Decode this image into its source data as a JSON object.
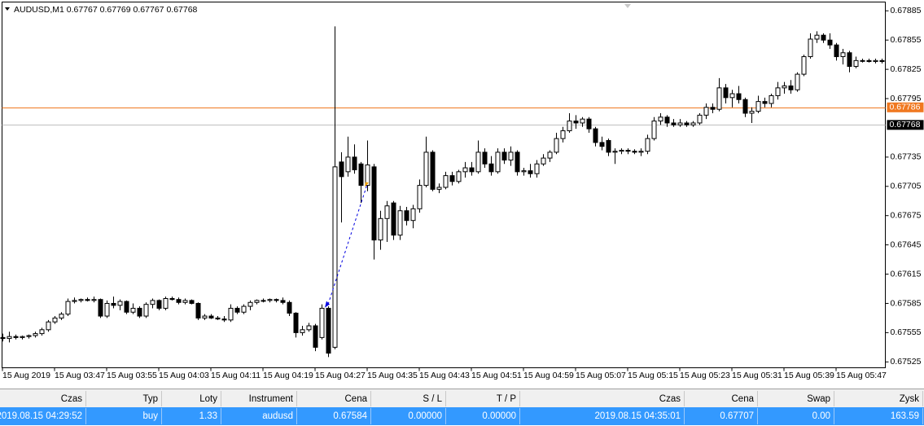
{
  "chart_data": {
    "type": "candlestick",
    "title": "AUDUSD,M1",
    "quote": [
      0.67767,
      0.67769,
      0.67767,
      0.67768
    ],
    "ylim": [
      0.67519,
      0.67894
    ],
    "yticks": [
      0.67885,
      0.67855,
      0.67825,
      0.67795,
      0.67735,
      0.67705,
      0.67675,
      0.67645,
      0.67615,
      0.67585,
      0.67555,
      0.67525
    ],
    "levels": [
      {
        "value": 0.67786,
        "color": "#f07820"
      },
      {
        "value": 0.67768,
        "color": "#c0c0c0"
      }
    ],
    "categories": [
      "15 Aug 2019",
      null,
      null,
      null,
      null,
      null,
      null,
      null,
      "15 Aug 03:47",
      null,
      null,
      null,
      null,
      null,
      null,
      null,
      "15 Aug 03:55",
      null,
      null,
      null,
      null,
      null,
      null,
      null,
      "15 Aug 04:03",
      null,
      null,
      null,
      null,
      null,
      null,
      null,
      "15 Aug 04:11",
      null,
      null,
      null,
      null,
      null,
      null,
      null,
      "15 Aug 04:19",
      null,
      null,
      null,
      null,
      null,
      null,
      null,
      "15 Aug 04:27",
      null,
      null,
      null,
      null,
      null,
      null,
      null,
      "15 Aug 04:35",
      null,
      null,
      null,
      null,
      null,
      null,
      null,
      "15 Aug 04:43",
      null,
      null,
      null,
      null,
      null,
      null,
      null,
      "15 Aug 04:51",
      null,
      null,
      null,
      null,
      null,
      null,
      null,
      "15 Aug 04:59",
      null,
      null,
      null,
      null,
      null,
      null,
      null,
      "15 Aug 05:07",
      null,
      null,
      null,
      null,
      null,
      null,
      null,
      "15 Aug 05:15",
      null,
      null,
      null,
      null,
      null,
      null,
      null,
      "15 Aug 05:23",
      null,
      null,
      null,
      null,
      null,
      null,
      null,
      "15 Aug 05:31",
      null,
      null,
      null,
      null,
      null,
      null,
      null,
      "15 Aug 05:39",
      null,
      null,
      null,
      null,
      null,
      null,
      null,
      "15 Aug 05:47",
      null,
      null,
      null,
      null,
      null,
      null,
      null
    ],
    "ohlc": [
      [
        0.6755,
        0.67554,
        0.67546,
        0.67549
      ],
      [
        0.67549,
        0.67556,
        0.67545,
        0.67551
      ],
      [
        0.67551,
        0.67553,
        0.67548,
        0.6755
      ],
      [
        0.6755,
        0.67552,
        0.67548,
        0.67551
      ],
      [
        0.67551,
        0.67553,
        0.67549,
        0.67552
      ],
      [
        0.67552,
        0.67556,
        0.6755,
        0.67554
      ],
      [
        0.67554,
        0.6756,
        0.67552,
        0.67558
      ],
      [
        0.67558,
        0.67568,
        0.67556,
        0.67566
      ],
      [
        0.67566,
        0.67572,
        0.67564,
        0.6757
      ],
      [
        0.6757,
        0.67576,
        0.67568,
        0.67574
      ],
      [
        0.67574,
        0.6759,
        0.67572,
        0.67587
      ],
      [
        0.67587,
        0.67591,
        0.67585,
        0.67588
      ],
      [
        0.67588,
        0.6759,
        0.67586,
        0.67589
      ],
      [
        0.67589,
        0.67591,
        0.67587,
        0.67588
      ],
      [
        0.67588,
        0.67592,
        0.67586,
        0.67589
      ],
      [
        0.67589,
        0.6759,
        0.6757,
        0.67572
      ],
      [
        0.67572,
        0.67588,
        0.6757,
        0.67585
      ],
      [
        0.67585,
        0.67592,
        0.6758,
        0.67583
      ],
      [
        0.67583,
        0.67589,
        0.67578,
        0.67587
      ],
      [
        0.67587,
        0.67588,
        0.67574,
        0.67576
      ],
      [
        0.67576,
        0.67585,
        0.67574,
        0.6758
      ],
      [
        0.6758,
        0.67582,
        0.6757,
        0.67572
      ],
      [
        0.67572,
        0.67586,
        0.6757,
        0.67584
      ],
      [
        0.67584,
        0.6759,
        0.6758,
        0.67588
      ],
      [
        0.67588,
        0.67589,
        0.67578,
        0.6758
      ],
      [
        0.6758,
        0.67592,
        0.67578,
        0.6759
      ],
      [
        0.6759,
        0.67592,
        0.67588,
        0.67589
      ],
      [
        0.67589,
        0.67591,
        0.67584,
        0.67586
      ],
      [
        0.67586,
        0.6759,
        0.67584,
        0.67588
      ],
      [
        0.67588,
        0.67589,
        0.67584,
        0.67585
      ],
      [
        0.67585,
        0.67586,
        0.67568,
        0.6757
      ],
      [
        0.6757,
        0.67574,
        0.67568,
        0.67572
      ],
      [
        0.67572,
        0.67574,
        0.67569,
        0.6757
      ],
      [
        0.6757,
        0.67572,
        0.67568,
        0.67569
      ],
      [
        0.67569,
        0.67572,
        0.67566,
        0.67568
      ],
      [
        0.67568,
        0.67584,
        0.67566,
        0.6758
      ],
      [
        0.6758,
        0.67582,
        0.67574,
        0.67576
      ],
      [
        0.67576,
        0.67584,
        0.67574,
        0.67582
      ],
      [
        0.67582,
        0.67588,
        0.67578,
        0.67586
      ],
      [
        0.67586,
        0.67589,
        0.67584,
        0.67588
      ],
      [
        0.67588,
        0.6759,
        0.67586,
        0.67588
      ],
      [
        0.67588,
        0.6759,
        0.67586,
        0.67589
      ],
      [
        0.67589,
        0.6759,
        0.67586,
        0.67588
      ],
      [
        0.67588,
        0.67591,
        0.67584,
        0.67586
      ],
      [
        0.67586,
        0.67588,
        0.67572,
        0.67575
      ],
      [
        0.67575,
        0.67576,
        0.6755,
        0.67555
      ],
      [
        0.67555,
        0.67562,
        0.67552,
        0.67558
      ],
      [
        0.67558,
        0.67565,
        0.67556,
        0.67562
      ],
      [
        0.67562,
        0.67564,
        0.67536,
        0.6754
      ],
      [
        0.6755,
        0.67584,
        0.67548,
        0.6758
      ],
      [
        0.6758,
        0.67582,
        0.6753,
        0.67534
      ],
      [
        0.6754,
        0.67869,
        0.67538,
        0.67725
      ],
      [
        0.6773,
        0.6774,
        0.67668,
        0.67715
      ],
      [
        0.6772,
        0.67756,
        0.67715,
        0.67735
      ],
      [
        0.67735,
        0.67748,
        0.67718,
        0.67722
      ],
      [
        0.67728,
        0.6773,
        0.67688,
        0.67706
      ],
      [
        0.67706,
        0.67752,
        0.677,
        0.67727
      ],
      [
        0.67725,
        0.67728,
        0.6763,
        0.6765
      ],
      [
        0.6765,
        0.6768,
        0.6764,
        0.67672
      ],
      [
        0.67672,
        0.6769,
        0.67648,
        0.67685
      ],
      [
        0.67688,
        0.6769,
        0.6765,
        0.67655
      ],
      [
        0.67655,
        0.67685,
        0.6765,
        0.6768
      ],
      [
        0.6768,
        0.67684,
        0.67665,
        0.6767
      ],
      [
        0.6767,
        0.67686,
        0.67662,
        0.67682
      ],
      [
        0.67682,
        0.67712,
        0.67678,
        0.67706
      ],
      [
        0.67706,
        0.67756,
        0.67704,
        0.6774
      ],
      [
        0.6774,
        0.67742,
        0.677,
        0.67702
      ],
      [
        0.67702,
        0.67708,
        0.67698,
        0.67704
      ],
      [
        0.67704,
        0.6772,
        0.67702,
        0.67716
      ],
      [
        0.67716,
        0.6772,
        0.67706,
        0.6771
      ],
      [
        0.6771,
        0.67722,
        0.67708,
        0.6772
      ],
      [
        0.6772,
        0.6773,
        0.67714,
        0.67724
      ],
      [
        0.67724,
        0.6773,
        0.67716,
        0.6772
      ],
      [
        0.6772,
        0.67752,
        0.67718,
        0.6774
      ],
      [
        0.6774,
        0.67744,
        0.67724,
        0.67728
      ],
      [
        0.67728,
        0.67736,
        0.67716,
        0.6772
      ],
      [
        0.6772,
        0.67744,
        0.67718,
        0.6774
      ],
      [
        0.6774,
        0.67744,
        0.67728,
        0.67732
      ],
      [
        0.67732,
        0.67746,
        0.67726,
        0.6774
      ],
      [
        0.6774,
        0.67742,
        0.67716,
        0.6772
      ],
      [
        0.6772,
        0.67724,
        0.67716,
        0.67721
      ],
      [
        0.67721,
        0.67728,
        0.67714,
        0.67718
      ],
      [
        0.67718,
        0.67732,
        0.67714,
        0.67728
      ],
      [
        0.67728,
        0.67738,
        0.67726,
        0.67734
      ],
      [
        0.67734,
        0.67742,
        0.6773,
        0.6774
      ],
      [
        0.6774,
        0.6776,
        0.67738,
        0.67754
      ],
      [
        0.67754,
        0.67766,
        0.6775,
        0.67762
      ],
      [
        0.67762,
        0.6778,
        0.6776,
        0.67772
      ],
      [
        0.67772,
        0.67778,
        0.67764,
        0.6777
      ],
      [
        0.6777,
        0.67776,
        0.67766,
        0.67774
      ],
      [
        0.67774,
        0.67776,
        0.6776,
        0.67764
      ],
      [
        0.67764,
        0.67766,
        0.67746,
        0.6775
      ],
      [
        0.6775,
        0.67756,
        0.67742,
        0.67746
      ],
      [
        0.67752,
        0.67754,
        0.67736,
        0.6774
      ],
      [
        0.6774,
        0.67744,
        0.67728,
        0.67741
      ],
      [
        0.67741,
        0.67744,
        0.67738,
        0.67742
      ],
      [
        0.67742,
        0.67744,
        0.67738,
        0.67741
      ],
      [
        0.67741,
        0.67743,
        0.67738,
        0.6774
      ],
      [
        0.6774,
        0.67744,
        0.67736,
        0.67741
      ],
      [
        0.67741,
        0.67758,
        0.67738,
        0.67754
      ],
      [
        0.67754,
        0.67776,
        0.67752,
        0.67772
      ],
      [
        0.67772,
        0.6778,
        0.67768,
        0.67776
      ],
      [
        0.67776,
        0.67778,
        0.67766,
        0.6777
      ],
      [
        0.6777,
        0.67774,
        0.67766,
        0.67768
      ],
      [
        0.67768,
        0.67774,
        0.67766,
        0.6777
      ],
      [
        0.6777,
        0.67772,
        0.67766,
        0.67768
      ],
      [
        0.67768,
        0.67772,
        0.67766,
        0.6777
      ],
      [
        0.6777,
        0.6778,
        0.67768,
        0.67778
      ],
      [
        0.67778,
        0.6779,
        0.67774,
        0.67786
      ],
      [
        0.67786,
        0.6779,
        0.6778,
        0.67784
      ],
      [
        0.67784,
        0.67816,
        0.67782,
        0.67806
      ],
      [
        0.67806,
        0.6781,
        0.6779,
        0.67796
      ],
      [
        0.67796,
        0.67804,
        0.67786,
        0.678
      ],
      [
        0.678,
        0.67808,
        0.6779,
        0.67794
      ],
      [
        0.67794,
        0.67796,
        0.67776,
        0.6778
      ],
      [
        0.6778,
        0.67786,
        0.6777,
        0.67782
      ],
      [
        0.67782,
        0.67798,
        0.6778,
        0.67792
      ],
      [
        0.67792,
        0.67796,
        0.67786,
        0.6779
      ],
      [
        0.6779,
        0.678,
        0.67786,
        0.67798
      ],
      [
        0.67798,
        0.67812,
        0.67794,
        0.67806
      ],
      [
        0.67806,
        0.67812,
        0.678,
        0.67808
      ],
      [
        0.67808,
        0.67814,
        0.678,
        0.67804
      ],
      [
        0.67804,
        0.67822,
        0.67802,
        0.6782
      ],
      [
        0.6782,
        0.6784,
        0.67818,
        0.67838
      ],
      [
        0.67838,
        0.67862,
        0.67836,
        0.67856
      ],
      [
        0.67856,
        0.67864,
        0.67852,
        0.6786
      ],
      [
        0.6786,
        0.67862,
        0.67852,
        0.67855
      ],
      [
        0.67855,
        0.67862,
        0.67846,
        0.6785
      ],
      [
        0.6785,
        0.67852,
        0.67834,
        0.67838
      ],
      [
        0.67838,
        0.67846,
        0.6783,
        0.67842
      ],
      [
        0.67842,
        0.67844,
        0.67822,
        0.67828
      ],
      [
        0.67828,
        0.67838,
        0.67826,
        0.67834
      ],
      [
        0.67834,
        0.67836,
        0.67832,
        0.67834
      ],
      [
        0.67834,
        0.67836,
        0.67832,
        0.67833
      ],
      [
        0.67833,
        0.67836,
        0.67831,
        0.67834
      ],
      [
        0.67834,
        0.67836,
        0.67831,
        0.67833
      ]
    ]
  },
  "table": {
    "columns": [
      "Czas",
      "Typ",
      "Loty",
      "Instrument",
      "Cena",
      "S / L",
      "T / P",
      "Czas",
      "Cena",
      "Swap",
      "Zysk"
    ],
    "rows": [
      [
        "2019.08.15 04:29:52",
        "buy",
        "1.33",
        "audusd",
        "0.67584",
        "0.00000",
        "0.00000",
        "2019.08.15 04:35:01",
        "0.67707",
        "0.00",
        "163.59"
      ]
    ]
  }
}
